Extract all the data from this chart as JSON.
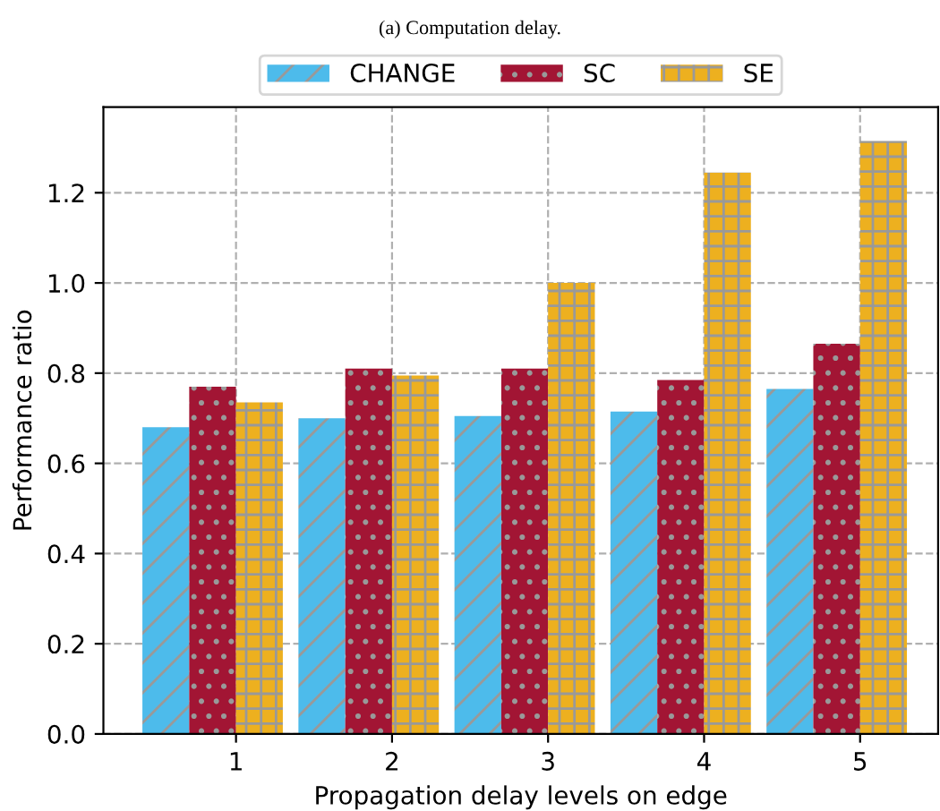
{
  "chart_data": {
    "type": "bar",
    "title": "(a) Computation delay.",
    "xlabel": "Propagation delay levels on edge",
    "ylabel": "Performance ratio",
    "categories": [
      "1",
      "2",
      "3",
      "4",
      "5"
    ],
    "series": [
      {
        "name": "CHANGE",
        "color": "#4dbbeb",
        "values": [
          0.68,
          0.7,
          0.705,
          0.715,
          0.765
        ]
      },
      {
        "name": "SC",
        "color": "#a21534",
        "values": [
          0.77,
          0.81,
          0.81,
          0.785,
          0.865
        ]
      },
      {
        "name": "SE",
        "color": "#edb01f",
        "values": [
          0.735,
          0.795,
          1.0,
          1.245,
          1.315
        ]
      }
    ],
    "ylim": [
      0,
      1.39
    ],
    "yticks": [
      {
        "value": 0,
        "label": "0.0"
      },
      0.2,
      0.4,
      0.6,
      0.8,
      {
        "value": 1,
        "label": "1.0"
      },
      1.2
    ],
    "grid": true,
    "legend": "top"
  }
}
